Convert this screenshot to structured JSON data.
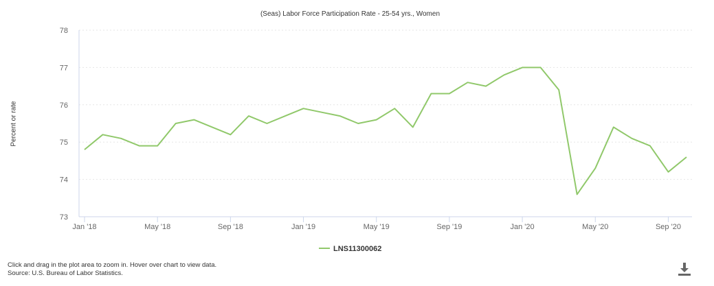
{
  "chart_data": {
    "type": "line",
    "title": "(Seas) Labor Force Participation Rate - 25-54 yrs., Women",
    "ylabel": "Percent or rate",
    "xlabel": "",
    "ylim": [
      73,
      78
    ],
    "yticks": [
      "73",
      "74",
      "75",
      "76",
      "77",
      "78"
    ],
    "xtick_labels": [
      "Jan '18",
      "May '18",
      "Sep '18",
      "Jan '19",
      "May '19",
      "Sep '19",
      "Jan '20",
      "May '20",
      "Sep '20"
    ],
    "xtick_indices": [
      0,
      4,
      8,
      12,
      16,
      20,
      24,
      28,
      32
    ],
    "grid": true,
    "legend_position": "bottom-center",
    "x": [
      "Jan '18",
      "Feb '18",
      "Mar '18",
      "Apr '18",
      "May '18",
      "Jun '18",
      "Jul '18",
      "Aug '18",
      "Sep '18",
      "Oct '18",
      "Nov '18",
      "Dec '18",
      "Jan '19",
      "Feb '19",
      "Mar '19",
      "Apr '19",
      "May '19",
      "Jun '19",
      "Jul '19",
      "Aug '19",
      "Sep '19",
      "Oct '19",
      "Nov '19",
      "Dec '19",
      "Jan '20",
      "Feb '20",
      "Mar '20",
      "Apr '20",
      "May '20",
      "Jun '20",
      "Jul '20",
      "Aug '20",
      "Sep '20",
      "Oct '20"
    ],
    "series": [
      {
        "name": "LNS11300062",
        "color": "#90c86a",
        "values": [
          74.8,
          75.2,
          75.1,
          74.9,
          74.9,
          75.5,
          75.6,
          75.4,
          75.2,
          75.7,
          75.5,
          75.7,
          75.9,
          75.8,
          75.7,
          75.5,
          75.6,
          75.9,
          75.4,
          76.3,
          76.3,
          76.6,
          76.5,
          76.8,
          77.0,
          77.0,
          76.4,
          73.6,
          74.3,
          75.4,
          75.1,
          74.9,
          74.2,
          74.6
        ]
      }
    ]
  },
  "footer": {
    "line1": "Click and drag in the plot area to zoom in. Hover over chart to view data.",
    "line2": "Source: U.S. Bureau of Labor Statistics."
  },
  "icons": {
    "download": "download-icon"
  }
}
